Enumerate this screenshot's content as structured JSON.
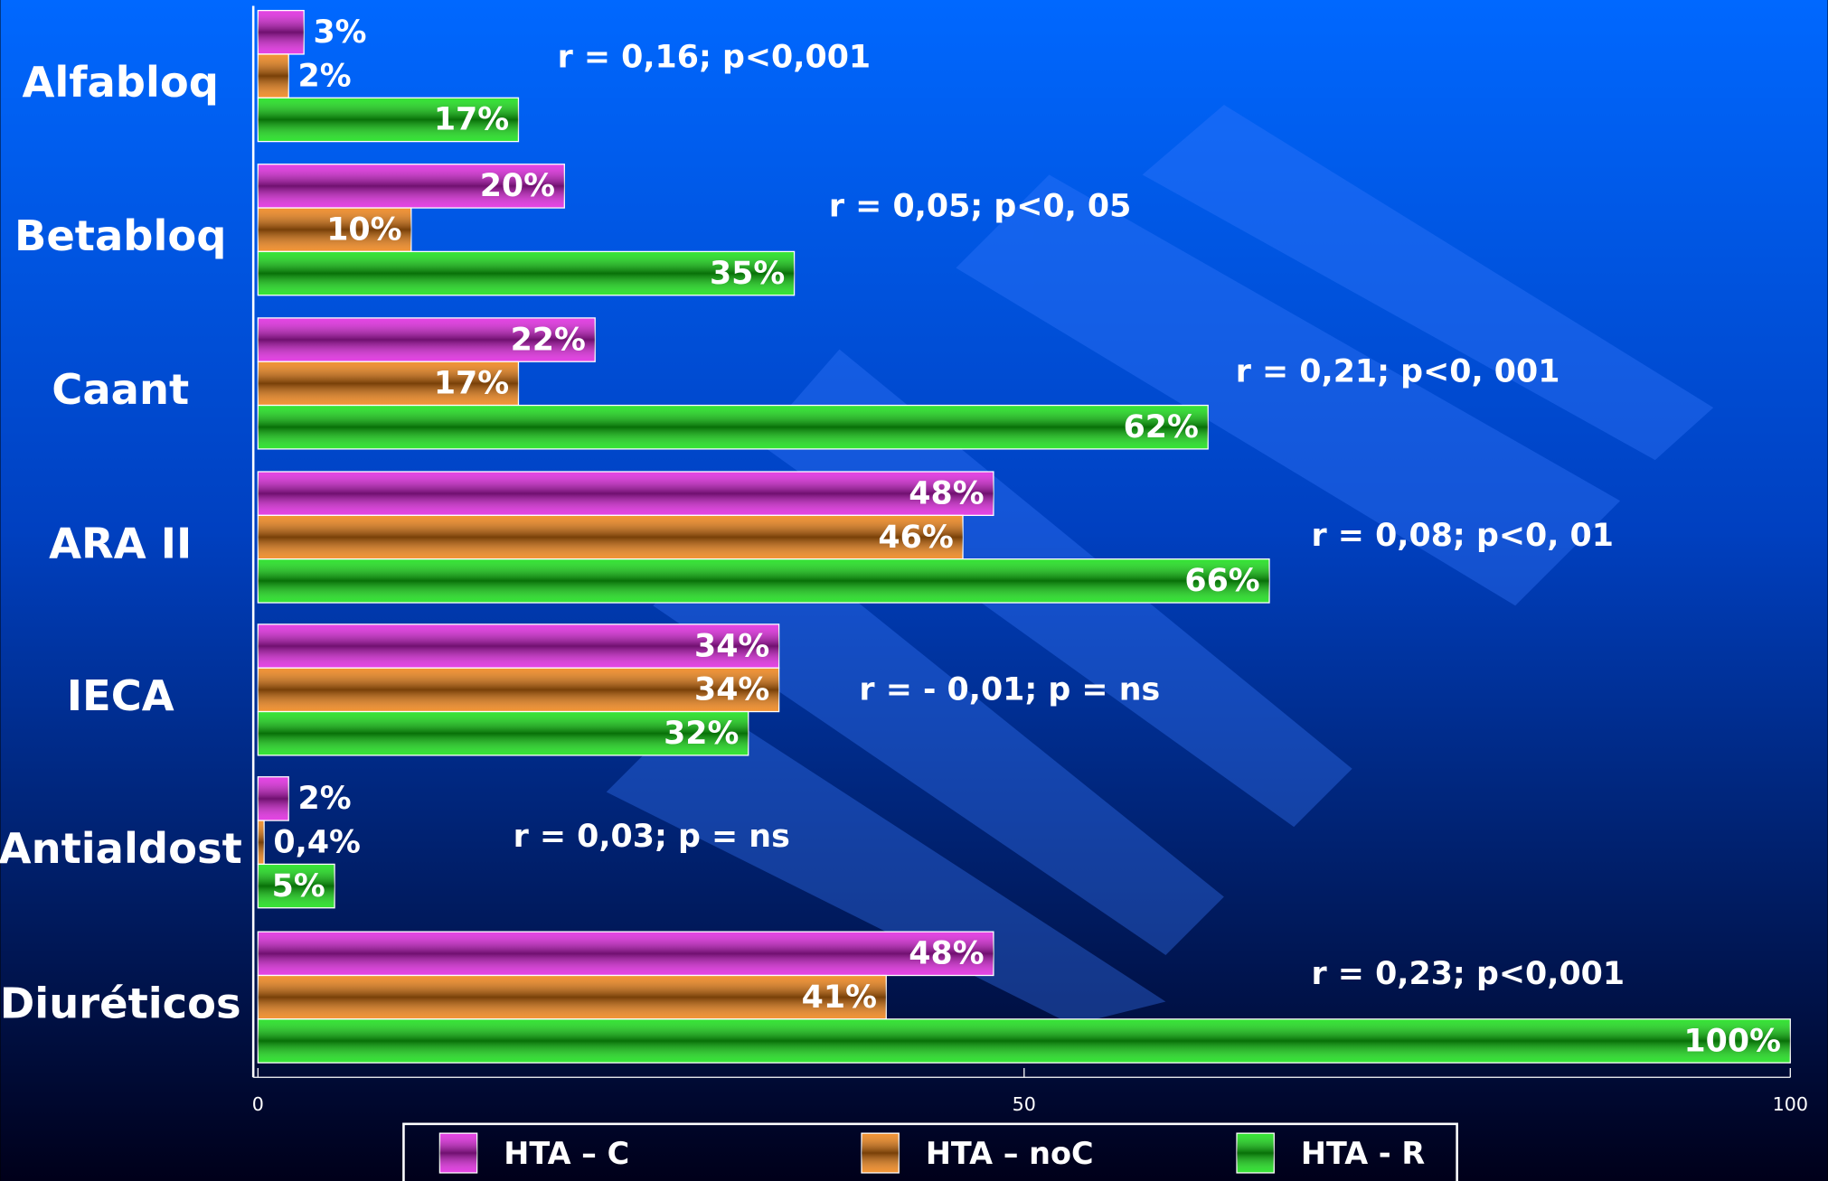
{
  "chart_data": {
    "type": "hbar",
    "categories": [
      "Alfabloq",
      "Betabloq",
      "Caant",
      "ARA II",
      "IECA",
      "Antialdost",
      "Diuréticos"
    ],
    "series": [
      {
        "name": "HTA – C",
        "color": "#e020e0",
        "values": [
          3,
          20,
          22,
          48,
          34,
          2,
          48
        ],
        "value_labels": [
          "3%",
          "20%",
          "22%",
          "48%",
          "34%",
          "2%",
          "48%"
        ]
      },
      {
        "name": "HTA – noC",
        "color": "#f08010",
        "values": [
          2,
          10,
          17,
          46,
          34,
          0.4,
          41
        ],
        "value_labels": [
          "2%",
          "10%",
          "17%",
          "46%",
          "34%",
          "0,4%",
          "41%"
        ]
      },
      {
        "name": "HTA - R",
        "color": "#10e010",
        "values": [
          17,
          35,
          62,
          66,
          32,
          5,
          100
        ],
        "value_labels": [
          "17%",
          "35%",
          "62%",
          "66%",
          "32%",
          "5%",
          "100%"
        ]
      }
    ],
    "annotations": [
      "r = 0,16;  p<0,001",
      "r = 0,05;  p<0, 05",
      "r = 0,21;  p<0, 001",
      "r = 0,08;  p<0, 01",
      "r = - 0,01;  p = ns",
      "r = 0,03;  p = ns",
      "r = 0,23;  p<0,001"
    ],
    "xlim": [
      0,
      100
    ],
    "xticks": [
      0,
      50,
      100
    ]
  }
}
